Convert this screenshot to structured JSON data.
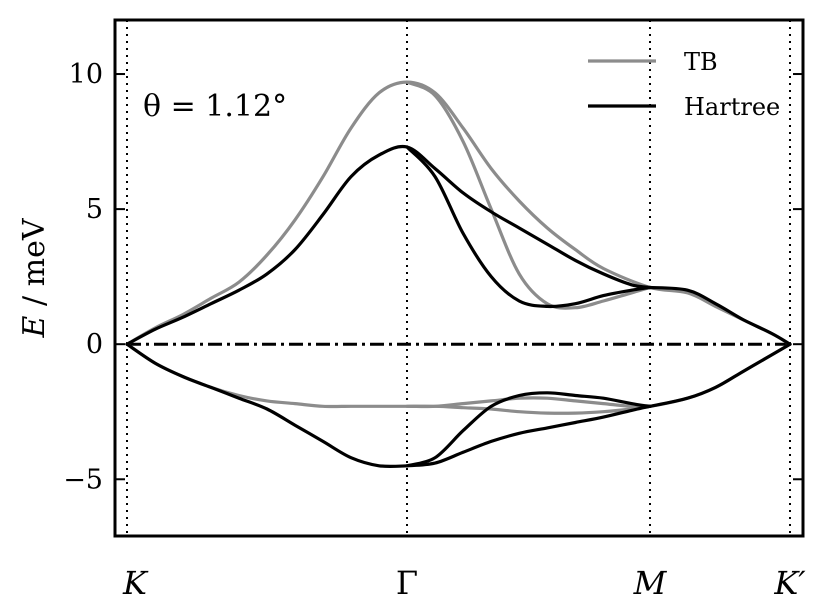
{
  "chart_data": {
    "type": "line",
    "title": "",
    "ylabel": "E / meV",
    "ylabel_parts": {
      "symbol": "E",
      "rest": " / meV"
    },
    "annotation": "θ = 1.12°",
    "ylim": [
      -7.1,
      12.0
    ],
    "yticks": [
      10,
      5,
      0,
      -5
    ],
    "ytick_labels": [
      "10",
      "5",
      "0",
      "−5"
    ],
    "xticks": [
      {
        "label": "K",
        "k": 0.0
      },
      {
        "label": "Γ",
        "k": 1.0
      },
      {
        "label": "M",
        "k": 1.866
      },
      {
        "label": "K′",
        "k": 2.366
      }
    ],
    "fermi_level": 0,
    "grid": false,
    "legend": {
      "placement": "top-right",
      "entries": [
        {
          "label": "TB",
          "color": "#8c8c8c"
        },
        {
          "label": "Hartree",
          "color": "#000000"
        }
      ]
    },
    "series": [
      {
        "name": "TB",
        "color": "#8c8c8c",
        "bands": [
          {
            "k": [
              0.0,
              0.1,
              0.2,
              0.3,
              0.4,
              0.5,
              0.6,
              0.7,
              0.8,
              0.9,
              1.0,
              1.1,
              1.2,
              1.3,
              1.4,
              1.5,
              1.6,
              1.7,
              1.866,
              2.0,
              2.1,
              2.2,
              2.3,
              2.366
            ],
            "e": [
              0.0,
              0.6,
              1.1,
              1.7,
              2.3,
              3.3,
              4.6,
              6.2,
              8.0,
              9.3,
              9.7,
              9.3,
              8.0,
              6.5,
              5.3,
              4.3,
              3.5,
              2.8,
              2.1,
              1.9,
              1.4,
              0.9,
              0.4,
              0.0
            ]
          },
          {
            "k": [
              1.0,
              1.1,
              1.2,
              1.3,
              1.4,
              1.5,
              1.6,
              1.7,
              1.8,
              1.866
            ],
            "e": [
              9.7,
              9.2,
              7.5,
              5.0,
              2.6,
              1.5,
              1.35,
              1.6,
              1.9,
              2.1
            ]
          },
          {
            "k": [
              0.0,
              0.1,
              0.2,
              0.3,
              0.4,
              0.5,
              0.6,
              0.7,
              0.8,
              0.9,
              1.0,
              1.1,
              1.2,
              1.3,
              1.4,
              1.5,
              1.6,
              1.7,
              1.8,
              1.866,
              2.0,
              2.1,
              2.2,
              2.3,
              2.366
            ],
            "e": [
              0.0,
              -0.7,
              -1.2,
              -1.6,
              -1.9,
              -2.1,
              -2.2,
              -2.3,
              -2.3,
              -2.3,
              -2.3,
              -2.3,
              -2.2,
              -2.1,
              -2.0,
              -2.0,
              -2.1,
              -2.2,
              -2.3,
              -2.3,
              -2.0,
              -1.6,
              -1.0,
              -0.4,
              0.0
            ]
          },
          {
            "k": [
              1.0,
              1.1,
              1.2,
              1.3,
              1.4,
              1.5,
              1.6,
              1.7,
              1.8,
              1.866
            ],
            "e": [
              -2.3,
              -2.3,
              -2.35,
              -2.4,
              -2.5,
              -2.55,
              -2.55,
              -2.5,
              -2.4,
              -2.3
            ]
          }
        ]
      },
      {
        "name": "Hartree",
        "color": "#000000",
        "bands": [
          {
            "k": [
              0.0,
              0.1,
              0.2,
              0.3,
              0.4,
              0.5,
              0.6,
              0.7,
              0.8,
              0.9,
              1.0,
              1.1,
              1.2,
              1.3,
              1.4,
              1.5,
              1.6,
              1.7,
              1.8,
              1.866
            ],
            "e": [
              0.0,
              0.55,
              1.0,
              1.5,
              2.0,
              2.6,
              3.5,
              4.8,
              6.2,
              7.0,
              7.3,
              6.5,
              5.6,
              4.9,
              4.3,
              3.7,
              3.1,
              2.6,
              2.2,
              2.1
            ]
          },
          {
            "k": [
              1.0,
              1.1,
              1.2,
              1.3,
              1.4,
              1.5,
              1.6,
              1.7,
              1.8,
              1.866
            ],
            "e": [
              7.3,
              6.2,
              4.1,
              2.5,
              1.6,
              1.4,
              1.5,
              1.8,
              2.0,
              2.1
            ]
          },
          {
            "k": [
              1.866,
              2.0,
              2.1,
              2.2,
              2.3,
              2.366
            ],
            "e": [
              2.1,
              2.0,
              1.5,
              0.9,
              0.4,
              0.0
            ]
          },
          {
            "k": [
              0.0,
              0.1,
              0.2,
              0.3,
              0.4,
              0.5,
              0.6,
              0.7,
              0.8,
              0.9,
              1.0,
              1.1,
              1.2,
              1.3,
              1.4,
              1.5,
              1.6,
              1.7,
              1.8,
              1.866
            ],
            "e": [
              0.0,
              -0.7,
              -1.2,
              -1.6,
              -2.0,
              -2.4,
              -3.0,
              -3.6,
              -4.2,
              -4.5,
              -4.5,
              -4.4,
              -4.0,
              -3.6,
              -3.3,
              -3.1,
              -2.9,
              -2.7,
              -2.45,
              -2.3
            ]
          },
          {
            "k": [
              1.0,
              1.1,
              1.2,
              1.3,
              1.4,
              1.5,
              1.6,
              1.7,
              1.8,
              1.866
            ],
            "e": [
              -4.5,
              -4.2,
              -3.2,
              -2.3,
              -1.9,
              -1.8,
              -1.9,
              -2.0,
              -2.2,
              -2.3
            ]
          },
          {
            "k": [
              1.866,
              2.0,
              2.1,
              2.2,
              2.3,
              2.366
            ],
            "e": [
              -2.3,
              -2.0,
              -1.6,
              -1.0,
              -0.4,
              0.0
            ]
          }
        ]
      }
    ]
  }
}
